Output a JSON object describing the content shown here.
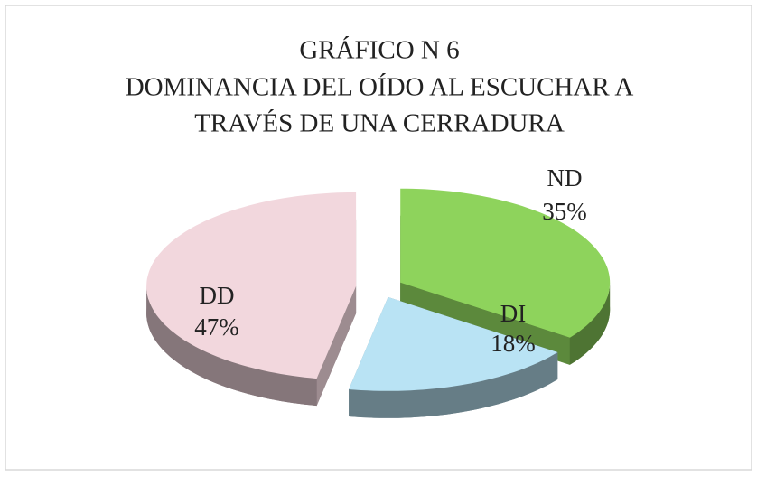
{
  "chart_data": {
    "type": "pie",
    "title": [
      "GRÁFICO N  6",
      "DOMINANCIA DEL OÍDO AL ESCUCHAR A",
      "TRAVÉS DE UNA CERRADURA"
    ],
    "categories": [
      "ND",
      "DI",
      "DD"
    ],
    "values": [
      35,
      18,
      47
    ],
    "value_labels": [
      "35%",
      "18%",
      "47%"
    ],
    "colors": [
      "#8ed35c",
      "#b9e3f4",
      "#f2d7dd"
    ]
  }
}
